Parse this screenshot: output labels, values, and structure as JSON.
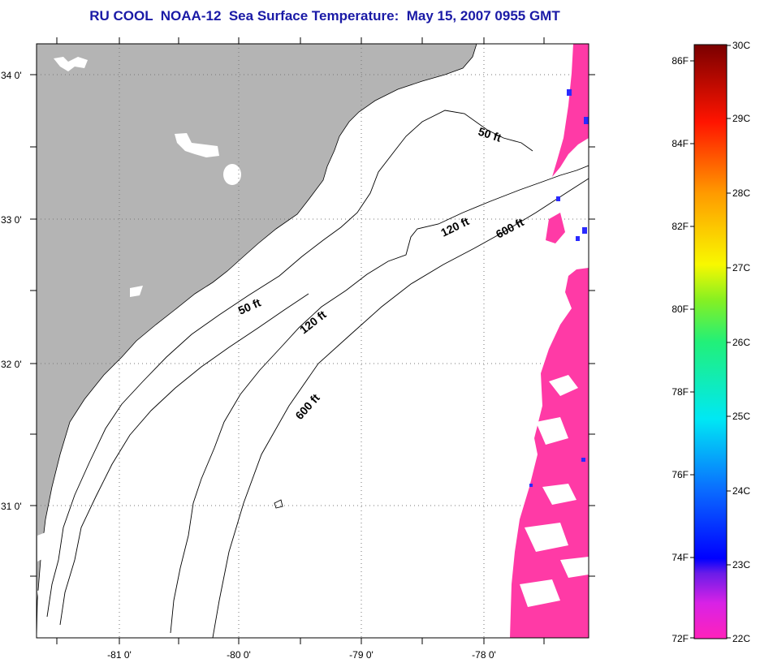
{
  "title": "RU COOL  NOAA-12  Sea Surface Temperature:  May 15, 2007 0955 GMT",
  "map": {
    "lon_range": [
      -81.5,
      -77.2
    ],
    "lat_range": [
      30.2,
      34.2
    ],
    "lon_ticks": [
      {
        "value": -81,
        "label": "-81 0'"
      },
      {
        "value": -80,
        "label": "-80 0'"
      },
      {
        "value": -79,
        "label": "-79 0'"
      },
      {
        "value": -78,
        "label": "-78 0'"
      }
    ],
    "lat_ticks": [
      {
        "value": 34,
        "label": "34 0'"
      },
      {
        "value": 33,
        "label": "33 0'"
      },
      {
        "value": 32,
        "label": "32 0'"
      },
      {
        "value": 31,
        "label": "31 0'"
      }
    ],
    "contour_labels": {
      "label_50": "50 ft",
      "label_120": "120 ft",
      "label_600": "600 ft"
    },
    "land_color": "#b4b4b4",
    "sst_color": "#ff3aa6"
  },
  "colorbar": {
    "celsius_labels": [
      "30C",
      "29C",
      "28C",
      "27C",
      "26C",
      "25C",
      "24C",
      "23C",
      "22C"
    ],
    "fahrenheit_labels": [
      "86F",
      "84F",
      "82F",
      "80F",
      "78F",
      "76F",
      "74F",
      "72F"
    ]
  }
}
